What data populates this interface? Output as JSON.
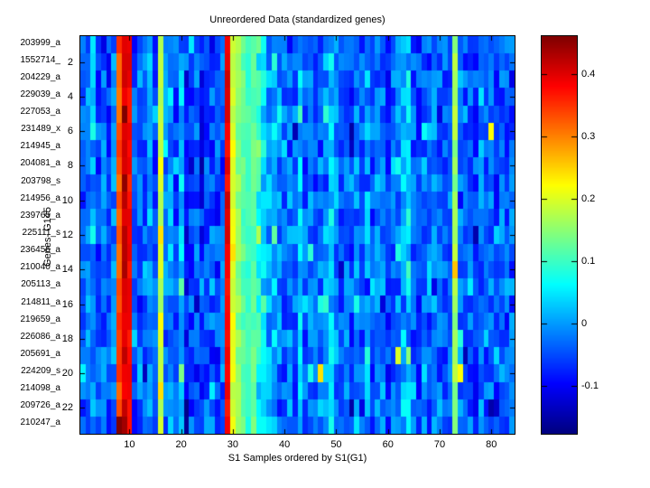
{
  "figure": {
    "title": "Unreordered Data (standardized genes)",
    "xlabel": "S1 Samples ordered by S1(G1)",
    "ylabel": "Genes- G145",
    "background_color": "#ffffff",
    "axis_color": "#000000"
  },
  "axes": {
    "x_ticks": [
      "10",
      "20",
      "30",
      "40",
      "50",
      "60",
      "70",
      "80"
    ],
    "y_ticks": [
      "2",
      "4",
      "6",
      "8",
      "10",
      "12",
      "14",
      "16",
      "18",
      "20",
      "22"
    ],
    "gene_labels": [
      "203999_a",
      "1552714_",
      "204229_a",
      "229039_a",
      "227053_a",
      "231489_x",
      "214945_a",
      "204081_a",
      "203798_s",
      "214956_a",
      "239765_a",
      "225111_s",
      "236456_a",
      "210040_a",
      "205113_a",
      "214811_a",
      "219659_a",
      "226086_a",
      "205691_a",
      "224209_s",
      "214098_a",
      "209726_a",
      "210247_a"
    ]
  },
  "colorbar": {
    "tick_labels": [
      "0.4",
      "0.3",
      "0.2",
      "0.1",
      "0",
      "-0.1"
    ],
    "tick_values": [
      0.4,
      0.3,
      0.2,
      0.1,
      0,
      -0.1
    ],
    "top_color": "#8b0000",
    "bottom_color": "#00008b"
  },
  "chart_data": {
    "type": "heatmap",
    "title": "Unreordered Data (standardized genes)",
    "xlabel": "S1 Samples ordered by S1(G1)",
    "ylabel": "Genes- G145",
    "colormap": "jet",
    "clim": [
      -0.177,
      0.461
    ],
    "n_rows": 23,
    "n_cols": 84,
    "rows": [
      "203999_a",
      "1552714_",
      "204229_a",
      "229039_a",
      "227053_a",
      "231489_x",
      "214945_a",
      "204081_a",
      "203798_s",
      "214956_a",
      "239765_a",
      "225111_s",
      "236456_a",
      "210040_a",
      "205113_a",
      "214811_a",
      "219659_a",
      "226086_a",
      "205691_a",
      "224209_s",
      "214098_a",
      "209726_a",
      "210247_a"
    ],
    "x_tick_values": [
      10,
      20,
      30,
      40,
      50,
      60,
      70,
      80
    ],
    "column_means": [
      -0.04,
      -0.02,
      0.0,
      -0.05,
      -0.03,
      -0.06,
      -0.02,
      0.33,
      0.41,
      0.38,
      -0.05,
      -0.03,
      -0.04,
      0.0,
      -0.05,
      0.18,
      -0.03,
      -0.01,
      -0.06,
      0.03,
      -0.09,
      -0.05,
      -0.04,
      -0.08,
      -0.05,
      -0.04,
      -0.06,
      -0.03,
      0.39,
      0.2,
      0.15,
      0.12,
      0.1,
      0.12,
      0.08,
      0.04,
      0.0,
      0.02,
      -0.02,
      -0.04,
      -0.02,
      -0.05,
      0.02,
      -0.04,
      -0.02,
      -0.05,
      -0.03,
      0.0,
      0.03,
      -0.02,
      -0.05,
      -0.03,
      -0.06,
      -0.02,
      -0.04,
      0.0,
      -0.05,
      -0.03,
      -0.02,
      -0.06,
      -0.04,
      -0.02,
      0.02,
      0.04,
      -0.04,
      -0.06,
      -0.03,
      -0.05,
      -0.02,
      -0.04,
      -0.05,
      -0.03,
      0.16,
      -0.02,
      -0.05,
      -0.04,
      -0.06,
      -0.03,
      -0.05,
      -0.02,
      -0.06,
      -0.04,
      -0.05,
      -0.04
    ],
    "hotspots": [
      {
        "row": 5,
        "col": 9,
        "value": 0.46
      },
      {
        "row": 9,
        "col": 9,
        "value": 0.45
      },
      {
        "row": 23,
        "col": 8,
        "value": 0.46
      },
      {
        "row": 23,
        "col": 9,
        "value": 0.44
      },
      {
        "row": 6,
        "col": 80,
        "value": 0.22
      },
      {
        "row": 20,
        "col": 47,
        "value": 0.24
      },
      {
        "row": 20,
        "col": 74,
        "value": 0.22
      },
      {
        "row": 19,
        "col": 62,
        "value": 0.2
      },
      {
        "row": 14,
        "col": 73,
        "value": 0.26
      },
      {
        "row": 13,
        "col": 30,
        "value": 0.24
      },
      {
        "row": 8,
        "col": 16,
        "value": 0.22
      },
      {
        "row": 12,
        "col": 16,
        "value": 0.24
      },
      {
        "row": 17,
        "col": 16,
        "value": 0.22
      },
      {
        "row": 21,
        "col": 16,
        "value": 0.24
      },
      {
        "row": 15,
        "col": 20,
        "value": 0.12
      },
      {
        "row": 20,
        "col": 20,
        "value": 0.14
      },
      {
        "row": 22,
        "col": 80,
        "value": -0.15
      },
      {
        "row": 22,
        "col": 81,
        "value": -0.13
      },
      {
        "row": 1,
        "col": 3,
        "value": 0.05
      },
      {
        "row": 2,
        "col": 3,
        "value": 0.04
      }
    ],
    "noise_amplitude": 0.05,
    "legend": "colorbar-right"
  }
}
